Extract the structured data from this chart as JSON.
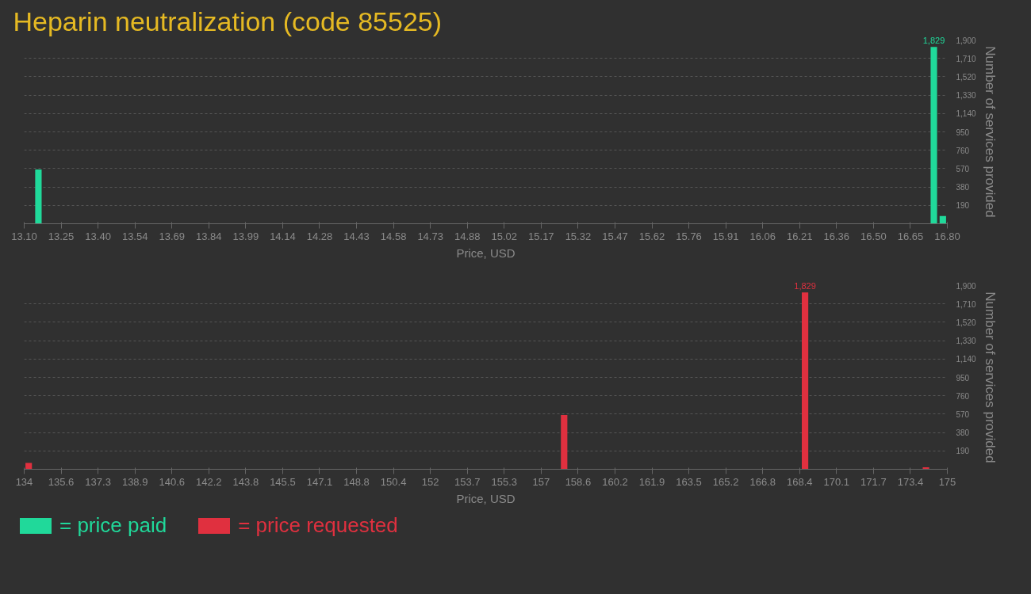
{
  "chart_data": [
    {
      "type": "bar",
      "title": "Heparin neutralization (code 85525)",
      "xlabel": "Price, USD",
      "ylabel": "Number of services provided",
      "x": [
        13.157,
        16.746,
        16.782
      ],
      "series": [
        {
          "name": "= price paid",
          "color": "#20d99a",
          "values": [
            560,
            1829,
            80
          ],
          "value_labels": [
            null,
            "1,829",
            null
          ]
        }
      ],
      "xlim": [
        13.1,
        16.8
      ],
      "xticks": [
        {
          "value": 13.1,
          "label": "13.10"
        },
        {
          "value": 13.248,
          "label": "13.25"
        },
        {
          "value": 13.396,
          "label": "13.40"
        },
        {
          "value": 13.544,
          "label": "13.54"
        },
        {
          "value": 13.692,
          "label": "13.69"
        },
        {
          "value": 13.84,
          "label": "13.84"
        },
        {
          "value": 13.988,
          "label": "13.99"
        },
        {
          "value": 14.136,
          "label": "14.14"
        },
        {
          "value": 14.284,
          "label": "14.28"
        },
        {
          "value": 14.432,
          "label": "14.43"
        },
        {
          "value": 14.58,
          "label": "14.58"
        },
        {
          "value": 14.728,
          "label": "14.73"
        },
        {
          "value": 14.876,
          "label": "14.88"
        },
        {
          "value": 15.024,
          "label": "15.02"
        },
        {
          "value": 15.172,
          "label": "15.17"
        },
        {
          "value": 15.32,
          "label": "15.32"
        },
        {
          "value": 15.468,
          "label": "15.47"
        },
        {
          "value": 15.616,
          "label": "15.62"
        },
        {
          "value": 15.764,
          "label": "15.76"
        },
        {
          "value": 15.912,
          "label": "15.91"
        },
        {
          "value": 16.06,
          "label": "16.06"
        },
        {
          "value": 16.208,
          "label": "16.21"
        },
        {
          "value": 16.356,
          "label": "16.36"
        },
        {
          "value": 16.504,
          "label": "16.50"
        },
        {
          "value": 16.652,
          "label": "16.65"
        },
        {
          "value": 16.8,
          "label": "16.80"
        }
      ],
      "ylim": [
        0,
        1900
      ],
      "yticks": [
        {
          "value": 190,
          "label": "190"
        },
        {
          "value": 380,
          "label": "380"
        },
        {
          "value": 570,
          "label": "570"
        },
        {
          "value": 760,
          "label": "760"
        },
        {
          "value": 950,
          "label": "950"
        },
        {
          "value": 1140,
          "label": "1,140"
        },
        {
          "value": 1330,
          "label": "1,330"
        },
        {
          "value": 1520,
          "label": "1,520"
        },
        {
          "value": 1710,
          "label": "1,710"
        },
        {
          "value": 1900,
          "label": "1,900"
        }
      ],
      "grid": "y",
      "legend": "bottom"
    },
    {
      "type": "bar",
      "xlabel": "Price, USD",
      "ylabel": "Number of services provided",
      "x": [
        134.2,
        157.98,
        168.68,
        174.05
      ],
      "series": [
        {
          "name": "= price requested",
          "color": "#e0303f",
          "values": [
            65,
            560,
            1829,
            20
          ],
          "value_labels": [
            null,
            null,
            "1,829",
            null
          ]
        }
      ],
      "xlim": [
        134,
        175
      ],
      "xticks": [
        {
          "value": 134,
          "label": "134"
        },
        {
          "value": 135.64,
          "label": "135.6"
        },
        {
          "value": 137.28,
          "label": "137.3"
        },
        {
          "value": 138.92,
          "label": "138.9"
        },
        {
          "value": 140.56,
          "label": "140.6"
        },
        {
          "value": 142.2,
          "label": "142.2"
        },
        {
          "value": 143.84,
          "label": "143.8"
        },
        {
          "value": 145.48,
          "label": "145.5"
        },
        {
          "value": 147.12,
          "label": "147.1"
        },
        {
          "value": 148.76,
          "label": "148.8"
        },
        {
          "value": 150.4,
          "label": "150.4"
        },
        {
          "value": 152.04,
          "label": "152"
        },
        {
          "value": 153.68,
          "label": "153.7"
        },
        {
          "value": 155.32,
          "label": "155.3"
        },
        {
          "value": 156.96,
          "label": "157"
        },
        {
          "value": 158.6,
          "label": "158.6"
        },
        {
          "value": 160.24,
          "label": "160.2"
        },
        {
          "value": 161.88,
          "label": "161.9"
        },
        {
          "value": 163.52,
          "label": "163.5"
        },
        {
          "value": 165.16,
          "label": "165.2"
        },
        {
          "value": 166.8,
          "label": "166.8"
        },
        {
          "value": 168.44,
          "label": "168.4"
        },
        {
          "value": 170.08,
          "label": "170.1"
        },
        {
          "value": 171.72,
          "label": "171.7"
        },
        {
          "value": 173.36,
          "label": "173.4"
        },
        {
          "value": 175,
          "label": "175"
        }
      ],
      "ylim": [
        0,
        1900
      ],
      "yticks": [
        {
          "value": 190,
          "label": "190"
        },
        {
          "value": 380,
          "label": "380"
        },
        {
          "value": 570,
          "label": "570"
        },
        {
          "value": 760,
          "label": "760"
        },
        {
          "value": 950,
          "label": "950"
        },
        {
          "value": 1140,
          "label": "1,140"
        },
        {
          "value": 1330,
          "label": "1,330"
        },
        {
          "value": 1520,
          "label": "1,520"
        },
        {
          "value": 1710,
          "label": "1,710"
        },
        {
          "value": 1900,
          "label": "1,900"
        }
      ],
      "grid": "y",
      "legend": "bottom"
    }
  ]
}
